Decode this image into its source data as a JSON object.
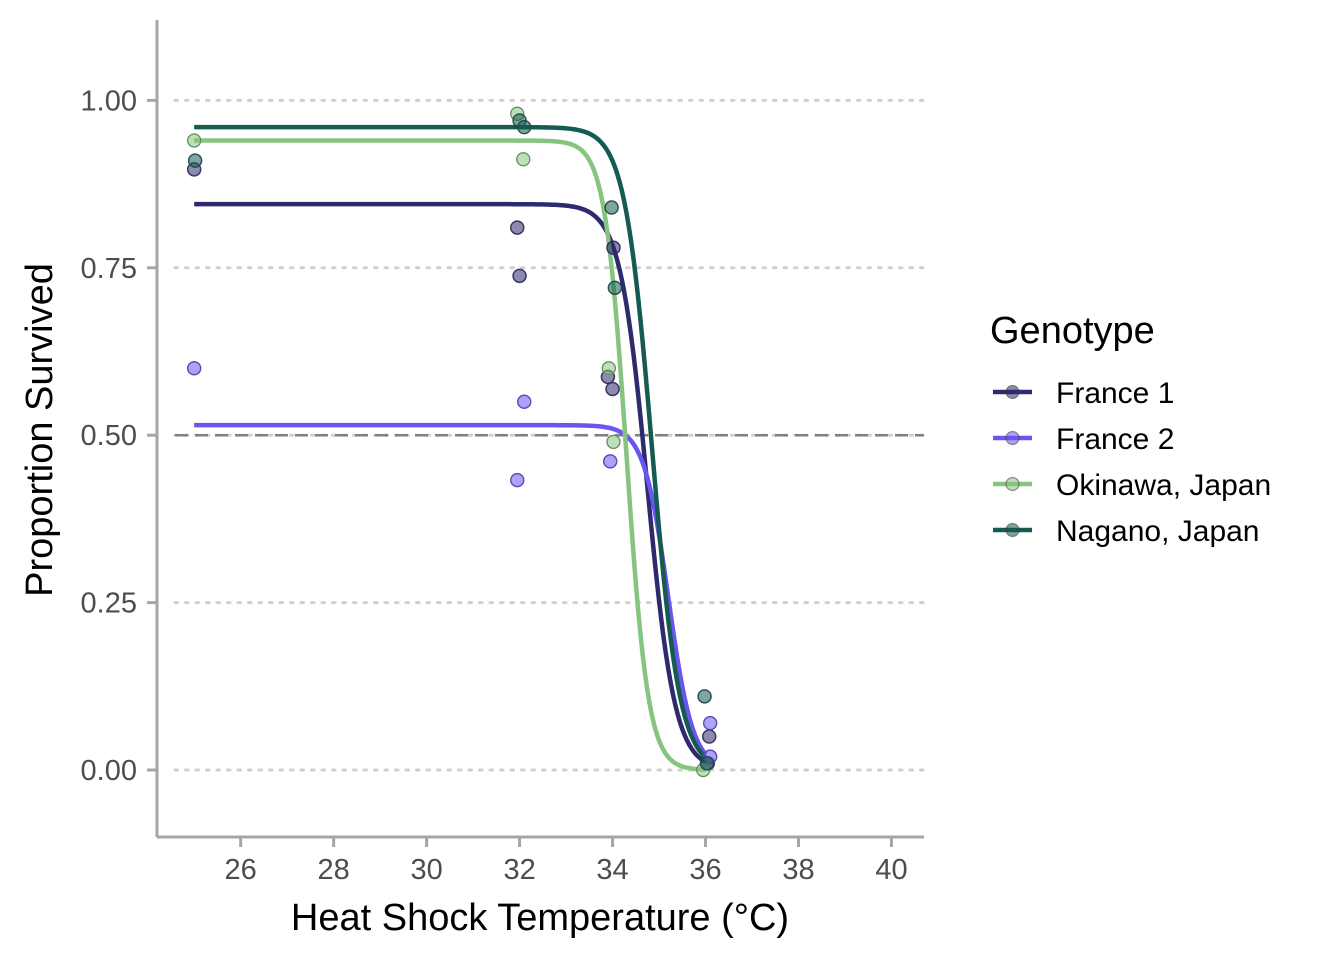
{
  "chart_data": {
    "type": "scatter",
    "title": "",
    "xlabel": "Heat Shock Temperature (°C)",
    "ylabel": "Proportion Survived",
    "xlim": [
      24.2,
      40.7
    ],
    "ylim": [
      -0.1,
      1.12
    ],
    "x_ticks": [
      26,
      28,
      30,
      32,
      34,
      36,
      38,
      40
    ],
    "x_tick_labels": [
      "26",
      "28",
      "30",
      "32",
      "34",
      "36",
      "38",
      "40"
    ],
    "y_ticks": [
      0,
      0.25,
      0.5,
      0.75,
      1.0
    ],
    "y_tick_labels": [
      "0.00",
      "0.25",
      "0.50",
      "0.75",
      "1.00"
    ],
    "grid": "horizontal dotted major",
    "reference_line": {
      "y": 0.5,
      "style": "dashed"
    },
    "legend_title": "Genotype",
    "legend_position": "right",
    "series": [
      {
        "name": "France 1",
        "color": "#2e2a6e",
        "points": [
          [
            25,
            0.897
          ],
          [
            31.95,
            0.81
          ],
          [
            32.0,
            0.738
          ],
          [
            33.9,
            0.587
          ],
          [
            34.0,
            0.569
          ],
          [
            34.02,
            0.78
          ],
          [
            36.05,
            0.01
          ],
          [
            36.08,
            0.05
          ]
        ],
        "curve": {
          "upper": 0.845,
          "midpoint": 34.75,
          "slope": 3.4,
          "x_start": 25,
          "x_end": 36.0
        }
      },
      {
        "name": "France 2",
        "color": "#6a55f0",
        "points": [
          [
            25,
            0.6
          ],
          [
            31.95,
            0.433
          ],
          [
            32.1,
            0.55
          ],
          [
            33.95,
            0.461
          ],
          [
            36.1,
            0.07
          ],
          [
            36.1,
            0.02
          ]
        ],
        "curve": {
          "upper": 0.515,
          "midpoint": 35.2,
          "slope": 3.8,
          "x_start": 25,
          "x_end": 36.0
        }
      },
      {
        "name": "Okinawa, Japan",
        "color": "#86c47f",
        "points": [
          [
            25,
            0.94
          ],
          [
            31.95,
            0.98
          ],
          [
            32.08,
            0.912
          ],
          [
            33.92,
            0.6
          ],
          [
            34.02,
            0.49
          ],
          [
            35.95,
            0.0
          ]
        ],
        "curve": {
          "upper": 0.94,
          "midpoint": 34.3,
          "slope": 4.3,
          "x_start": 25,
          "x_end": 36.0
        }
      },
      {
        "name": "Nagano, Japan",
        "color": "#155b52",
        "points": [
          [
            25.02,
            0.91
          ],
          [
            32.0,
            0.97
          ],
          [
            32.1,
            0.96
          ],
          [
            33.98,
            0.84
          ],
          [
            34.05,
            0.72
          ],
          [
            35.98,
            0.11
          ],
          [
            36.03,
            0.01
          ]
        ],
        "curve": {
          "upper": 0.96,
          "midpoint": 34.85,
          "slope": 3.4,
          "x_start": 25,
          "x_end": 36.0
        }
      }
    ]
  }
}
